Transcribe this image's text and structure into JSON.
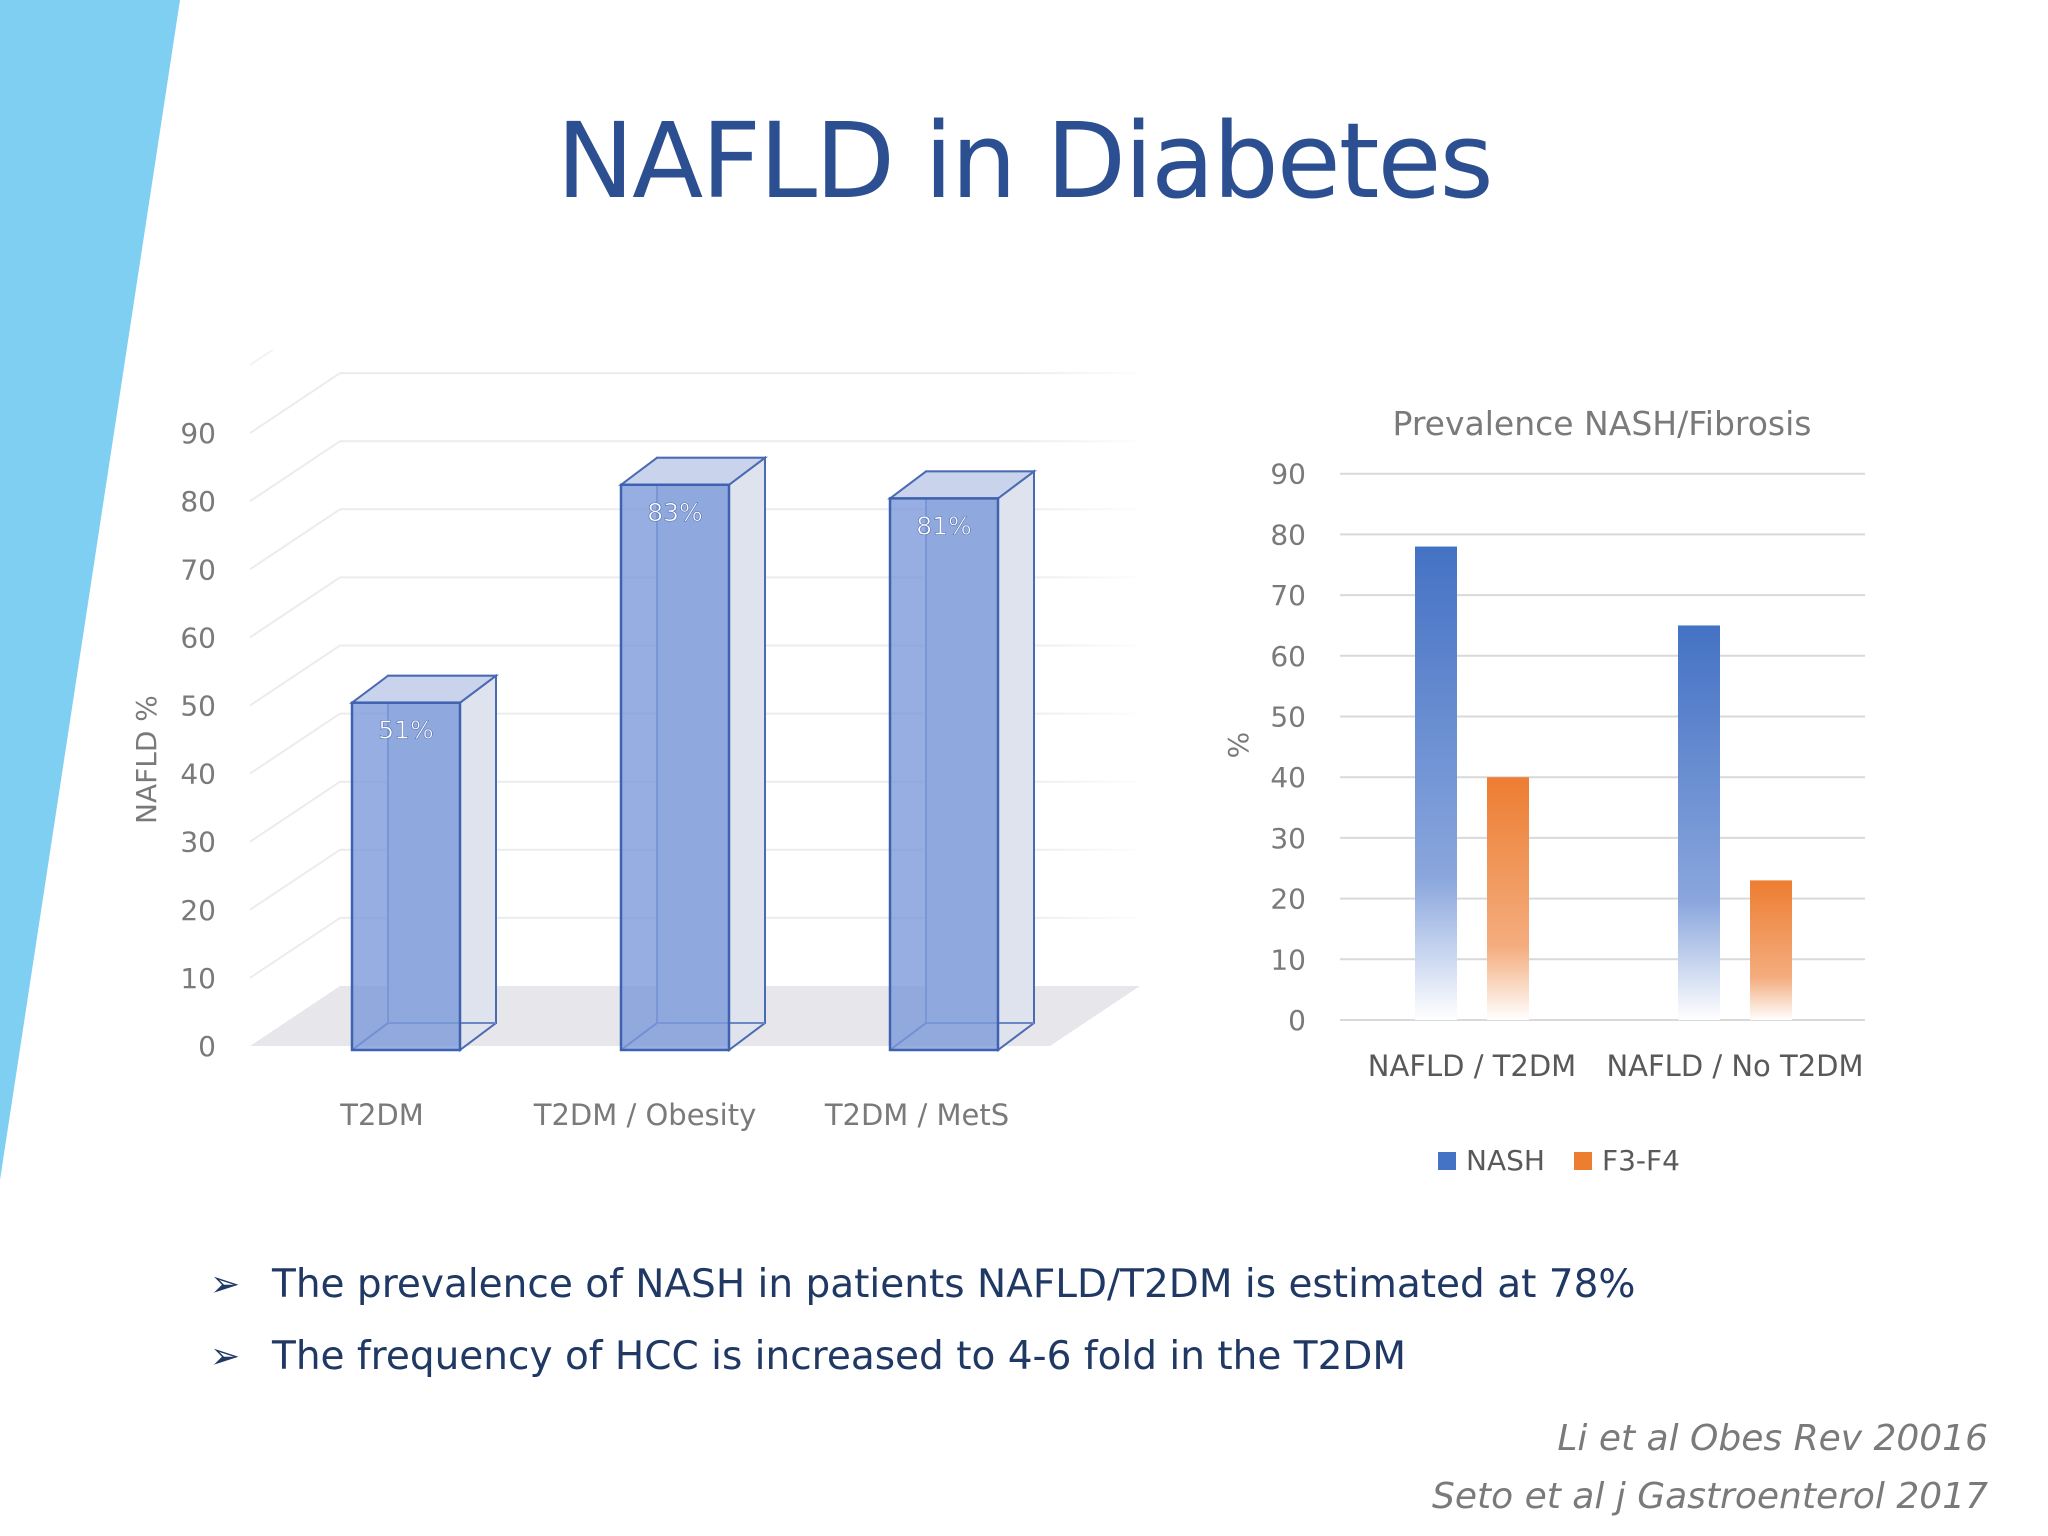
{
  "slide": {
    "title": "NAFLD in Diabetes",
    "bullets": [
      "The prevalence of NASH in patients NAFLD/T2DM is estimated at 78%",
      "The frequency of HCC is increased to 4-6 fold in the T2DM"
    ],
    "bullet_icon": "arrowhead-icon",
    "references": [
      "Li et al Obes Rev 20016",
      "Seto et al j Gastroenterol 2017"
    ],
    "colors": {
      "title": "#2c4f91",
      "stripe": "#7ecff2",
      "bar_blue": "#4472c4",
      "bar_orange": "#ed7d31"
    }
  },
  "chart_data": [
    {
      "type": "bar",
      "style": "3d",
      "categories": [
        "T2DM",
        "T2DM / Obesity",
        "T2DM / MetS"
      ],
      "values": [
        51,
        83,
        81
      ],
      "data_labels": [
        "51%",
        "83%",
        "81%"
      ],
      "title": "",
      "xlabel": "",
      "ylabel": "NAFLD %",
      "ylim": [
        0,
        90
      ],
      "yticks": [
        0,
        10,
        20,
        30,
        40,
        50,
        60,
        70,
        80,
        90
      ],
      "grid": true
    },
    {
      "type": "bar",
      "title": "Prevalence NASH/Fibrosis",
      "categories": [
        "NAFLD / T2DM",
        "NAFLD / No T2DM"
      ],
      "series": [
        {
          "name": "NASH",
          "values": [
            78,
            65
          ]
        },
        {
          "name": "F3-F4",
          "values": [
            40,
            23
          ]
        }
      ],
      "xlabel": "",
      "ylabel": "%",
      "ylim": [
        0,
        90
      ],
      "yticks": [
        0,
        10,
        20,
        30,
        40,
        50,
        60,
        70,
        80,
        90
      ],
      "grid": true,
      "legend": "bottom"
    }
  ]
}
